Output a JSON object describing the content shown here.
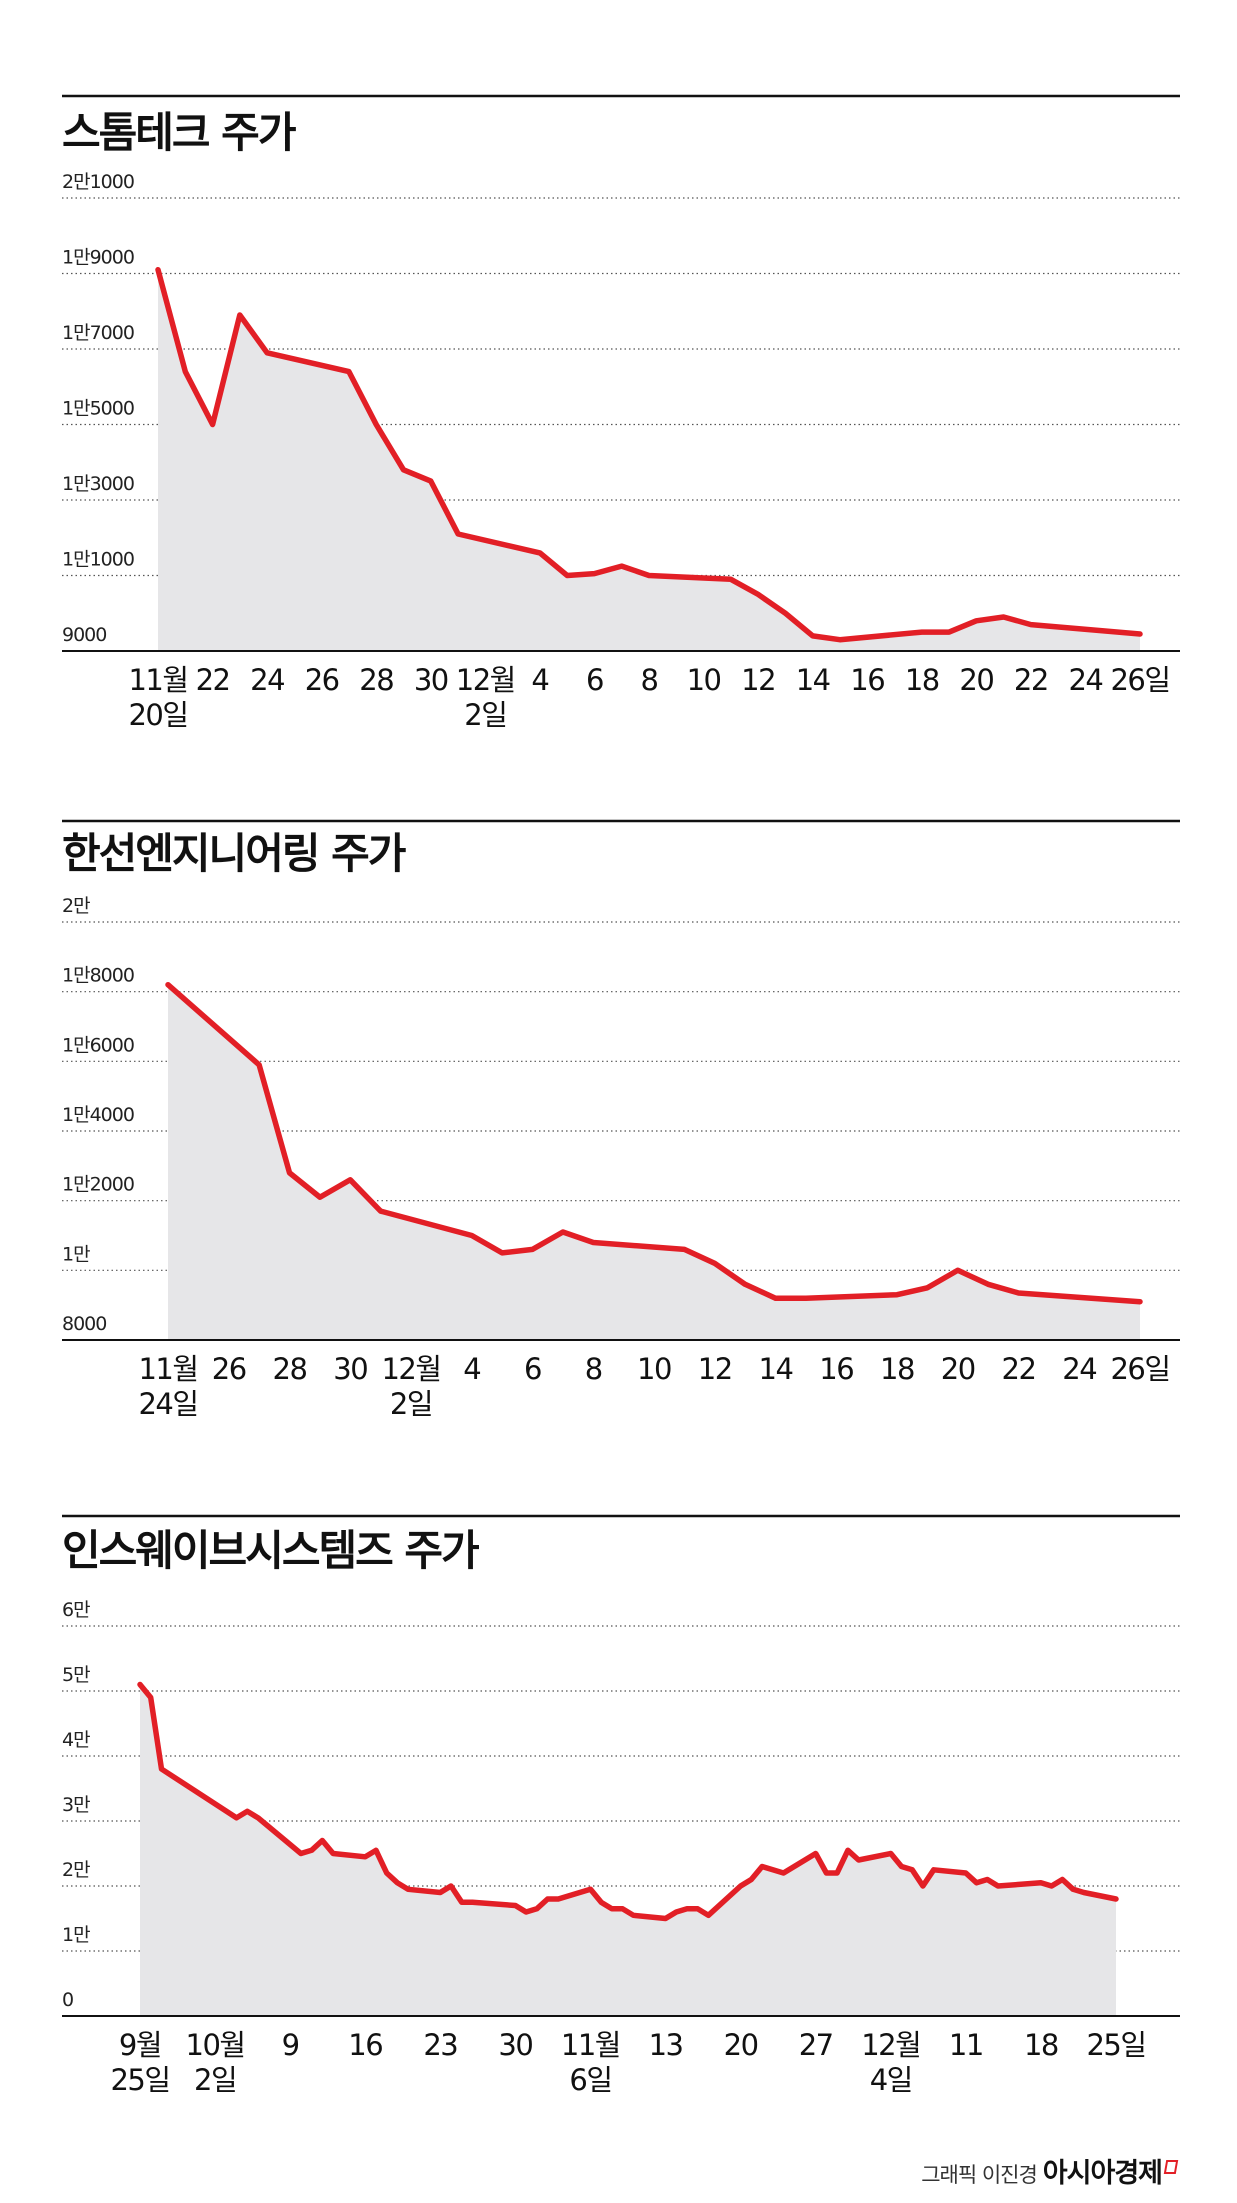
{
  "credit": {
    "graphic": "그래픽 이진경",
    "brand": "아시아경제"
  },
  "colors": {
    "line": "#e21f26",
    "area": "#e6e6e8",
    "grid": "#555555",
    "rule": "#111111"
  },
  "chart_data": [
    {
      "type": "area",
      "title": "스톰테크 주가",
      "ylim": [
        9000,
        21000
      ],
      "grid": true,
      "y_ticks": [
        {
          "value": 21000,
          "label": "2만1000"
        },
        {
          "value": 19000,
          "label": "1만9000"
        },
        {
          "value": 17000,
          "label": "1만7000"
        },
        {
          "value": 15000,
          "label": "1만5000"
        },
        {
          "value": 13000,
          "label": "1만3000"
        },
        {
          "value": 11000,
          "label": "1만1000"
        },
        {
          "value": 9000,
          "label": "9000"
        }
      ],
      "x_ticks": [
        {
          "date": "2023-11-20",
          "label": [
            "11월",
            "20일"
          ]
        },
        {
          "date": "2023-11-22",
          "label": [
            "22"
          ]
        },
        {
          "date": "2023-11-24",
          "label": [
            "24"
          ]
        },
        {
          "date": "2023-11-26",
          "label": [
            "26"
          ]
        },
        {
          "date": "2023-11-28",
          "label": [
            "28"
          ]
        },
        {
          "date": "2023-11-30",
          "label": [
            "30"
          ]
        },
        {
          "date": "2023-12-02",
          "label": [
            "12월",
            "2일"
          ]
        },
        {
          "date": "2023-12-04",
          "label": [
            "4"
          ]
        },
        {
          "date": "2023-12-06",
          "label": [
            "6"
          ]
        },
        {
          "date": "2023-12-08",
          "label": [
            "8"
          ]
        },
        {
          "date": "2023-12-10",
          "label": [
            "10"
          ]
        },
        {
          "date": "2023-12-12",
          "label": [
            "12"
          ]
        },
        {
          "date": "2023-12-14",
          "label": [
            "14"
          ]
        },
        {
          "date": "2023-12-16",
          "label": [
            "16"
          ]
        },
        {
          "date": "2023-12-18",
          "label": [
            "18"
          ]
        },
        {
          "date": "2023-12-20",
          "label": [
            "20"
          ]
        },
        {
          "date": "2023-12-22",
          "label": [
            "22"
          ]
        },
        {
          "date": "2023-12-24",
          "label": [
            "24"
          ]
        },
        {
          "date": "2023-12-26",
          "label": [
            "26일"
          ]
        }
      ],
      "x_start": "2023-11-20",
      "x_end": "2023-12-26",
      "series": [
        {
          "points": [
            [
              "2023-11-20",
              19100
            ],
            [
              "2023-11-21",
              16400
            ],
            [
              "2023-11-22",
              15000
            ],
            [
              "2023-11-23",
              17900
            ],
            [
              "2023-11-24",
              16900
            ],
            [
              "2023-11-27",
              16400
            ],
            [
              "2023-11-28",
              15000
            ],
            [
              "2023-11-29",
              13800
            ],
            [
              "2023-11-30",
              13500
            ],
            [
              "2023-12-01",
              12100
            ],
            [
              "2023-12-04",
              11600
            ],
            [
              "2023-12-05",
              11000
            ],
            [
              "2023-12-06",
              11050
            ],
            [
              "2023-12-07",
              11250
            ],
            [
              "2023-12-08",
              11000
            ],
            [
              "2023-12-11",
              10900
            ],
            [
              "2023-12-12",
              10500
            ],
            [
              "2023-12-13",
              10000
            ],
            [
              "2023-12-14",
              9400
            ],
            [
              "2023-12-15",
              9300
            ],
            [
              "2023-12-18",
              9500
            ],
            [
              "2023-12-19",
              9500
            ],
            [
              "2023-12-20",
              9800
            ],
            [
              "2023-12-21",
              9900
            ],
            [
              "2023-12-22",
              9700
            ],
            [
              "2023-12-26",
              9450
            ]
          ]
        }
      ]
    },
    {
      "type": "area",
      "title": "한선엔지니어링 주가",
      "ylim": [
        8000,
        20000
      ],
      "grid": true,
      "y_ticks": [
        {
          "value": 20000,
          "label": "2만"
        },
        {
          "value": 18000,
          "label": "1만8000"
        },
        {
          "value": 16000,
          "label": "1만6000"
        },
        {
          "value": 14000,
          "label": "1만4000"
        },
        {
          "value": 12000,
          "label": "1만2000"
        },
        {
          "value": 10000,
          "label": "1만"
        },
        {
          "value": 8000,
          "label": "8000"
        }
      ],
      "x_ticks": [
        {
          "date": "2023-11-24",
          "label": [
            "11월",
            "24일"
          ]
        },
        {
          "date": "2023-11-26",
          "label": [
            "26"
          ]
        },
        {
          "date": "2023-11-28",
          "label": [
            "28"
          ]
        },
        {
          "date": "2023-11-30",
          "label": [
            "30"
          ]
        },
        {
          "date": "2023-12-02",
          "label": [
            "12월",
            "2일"
          ]
        },
        {
          "date": "2023-12-04",
          "label": [
            "4"
          ]
        },
        {
          "date": "2023-12-06",
          "label": [
            "6"
          ]
        },
        {
          "date": "2023-12-08",
          "label": [
            "8"
          ]
        },
        {
          "date": "2023-12-10",
          "label": [
            "10"
          ]
        },
        {
          "date": "2023-12-12",
          "label": [
            "12"
          ]
        },
        {
          "date": "2023-12-14",
          "label": [
            "14"
          ]
        },
        {
          "date": "2023-12-16",
          "label": [
            "16"
          ]
        },
        {
          "date": "2023-12-18",
          "label": [
            "18"
          ]
        },
        {
          "date": "2023-12-20",
          "label": [
            "20"
          ]
        },
        {
          "date": "2023-12-22",
          "label": [
            "22"
          ]
        },
        {
          "date": "2023-12-24",
          "label": [
            "24"
          ]
        },
        {
          "date": "2023-12-26",
          "label": [
            "26일"
          ]
        }
      ],
      "x_start": "2023-11-24",
      "x_end": "2023-12-26",
      "series": [
        {
          "points": [
            [
              "2023-11-24",
              18200
            ],
            [
              "2023-11-27",
              15900
            ],
            [
              "2023-11-28",
              12800
            ],
            [
              "2023-11-29",
              12100
            ],
            [
              "2023-11-30",
              12600
            ],
            [
              "2023-12-01",
              11700
            ],
            [
              "2023-12-04",
              11000
            ],
            [
              "2023-12-05",
              10500
            ],
            [
              "2023-12-06",
              10600
            ],
            [
              "2023-12-07",
              11100
            ],
            [
              "2023-12-08",
              10800
            ],
            [
              "2023-12-11",
              10600
            ],
            [
              "2023-12-12",
              10200
            ],
            [
              "2023-12-13",
              9600
            ],
            [
              "2023-12-14",
              9200
            ],
            [
              "2023-12-15",
              9200
            ],
            [
              "2023-12-18",
              9300
            ],
            [
              "2023-12-19",
              9500
            ],
            [
              "2023-12-20",
              10000
            ],
            [
              "2023-12-21",
              9600
            ],
            [
              "2023-12-22",
              9350
            ],
            [
              "2023-12-26",
              9100
            ]
          ]
        }
      ]
    },
    {
      "type": "area",
      "title": "인스웨이브시스템즈 주가",
      "ylim": [
        0,
        60000
      ],
      "grid": true,
      "y_ticks": [
        {
          "value": 60000,
          "label": "6만"
        },
        {
          "value": 50000,
          "label": "5만"
        },
        {
          "value": 40000,
          "label": "4만"
        },
        {
          "value": 30000,
          "label": "3만"
        },
        {
          "value": 20000,
          "label": "2만"
        },
        {
          "value": 10000,
          "label": "1만"
        },
        {
          "value": 0,
          "label": "0"
        }
      ],
      "x_ticks": [
        {
          "date": "2023-09-25",
          "label": [
            "9월",
            "25일"
          ]
        },
        {
          "date": "2023-10-02",
          "label": [
            "10월",
            "2일"
          ]
        },
        {
          "date": "2023-10-09",
          "label": [
            "9"
          ]
        },
        {
          "date": "2023-10-16",
          "label": [
            "16"
          ]
        },
        {
          "date": "2023-10-23",
          "label": [
            "23"
          ]
        },
        {
          "date": "2023-10-30",
          "label": [
            "30"
          ]
        },
        {
          "date": "2023-11-06",
          "label": [
            "11월",
            "6일"
          ]
        },
        {
          "date": "2023-11-13",
          "label": [
            "13"
          ]
        },
        {
          "date": "2023-11-20",
          "label": [
            "20"
          ]
        },
        {
          "date": "2023-11-27",
          "label": [
            "27"
          ]
        },
        {
          "date": "2023-12-04",
          "label": [
            "12월",
            "4일"
          ]
        },
        {
          "date": "2023-12-11",
          "label": [
            "11"
          ]
        },
        {
          "date": "2023-12-18",
          "label": [
            "18"
          ]
        },
        {
          "date": "2023-12-25",
          "label": [
            "25일"
          ]
        }
      ],
      "x_start": "2023-09-25",
      "x_end": "2023-12-25",
      "series": [
        {
          "points": [
            [
              "2023-09-25",
              51000
            ],
            [
              "2023-09-26",
              49000
            ],
            [
              "2023-09-27",
              38000
            ],
            [
              "2023-10-04",
              30500
            ],
            [
              "2023-10-05",
              31500
            ],
            [
              "2023-10-06",
              30500
            ],
            [
              "2023-10-10",
              25000
            ],
            [
              "2023-10-11",
              25500
            ],
            [
              "2023-10-12",
              27000
            ],
            [
              "2023-10-13",
              25000
            ],
            [
              "2023-10-16",
              24500
            ],
            [
              "2023-10-17",
              25500
            ],
            [
              "2023-10-18",
              22000
            ],
            [
              "2023-10-19",
              20500
            ],
            [
              "2023-10-20",
              19500
            ],
            [
              "2023-10-23",
              19000
            ],
            [
              "2023-10-24",
              20000
            ],
            [
              "2023-10-25",
              17500
            ],
            [
              "2023-10-26",
              17500
            ],
            [
              "2023-10-30",
              17000
            ],
            [
              "2023-10-31",
              16000
            ],
            [
              "2023-11-01",
              16500
            ],
            [
              "2023-11-02",
              18000
            ],
            [
              "2023-11-03",
              18000
            ],
            [
              "2023-11-06",
              19500
            ],
            [
              "2023-11-07",
              17500
            ],
            [
              "2023-11-08",
              16500
            ],
            [
              "2023-11-09",
              16500
            ],
            [
              "2023-11-10",
              15500
            ],
            [
              "2023-11-13",
              15000
            ],
            [
              "2023-11-14",
              16000
            ],
            [
              "2023-11-15",
              16500
            ],
            [
              "2023-11-16",
              16500
            ],
            [
              "2023-11-17",
              15500
            ],
            [
              "2023-11-20",
              20000
            ],
            [
              "2023-11-21",
              21000
            ],
            [
              "2023-11-22",
              23000
            ],
            [
              "2023-11-23",
              22500
            ],
            [
              "2023-11-24",
              22000
            ],
            [
              "2023-11-27",
              25000
            ],
            [
              "2023-11-28",
              22000
            ],
            [
              "2023-11-29",
              22000
            ],
            [
              "2023-11-30",
              25500
            ],
            [
              "2023-12-01",
              24000
            ],
            [
              "2023-12-04",
              25000
            ],
            [
              "2023-12-05",
              23000
            ],
            [
              "2023-12-06",
              22500
            ],
            [
              "2023-12-07",
              20000
            ],
            [
              "2023-12-08",
              22500
            ],
            [
              "2023-12-11",
              22000
            ],
            [
              "2023-12-12",
              20500
            ],
            [
              "2023-12-13",
              21000
            ],
            [
              "2023-12-14",
              20000
            ],
            [
              "2023-12-18",
              20500
            ],
            [
              "2023-12-19",
              20000
            ],
            [
              "2023-12-20",
              21000
            ],
            [
              "2023-12-21",
              19500
            ],
            [
              "2023-12-22",
              19000
            ],
            [
              "2023-12-25",
              18000
            ]
          ]
        }
      ]
    }
  ]
}
